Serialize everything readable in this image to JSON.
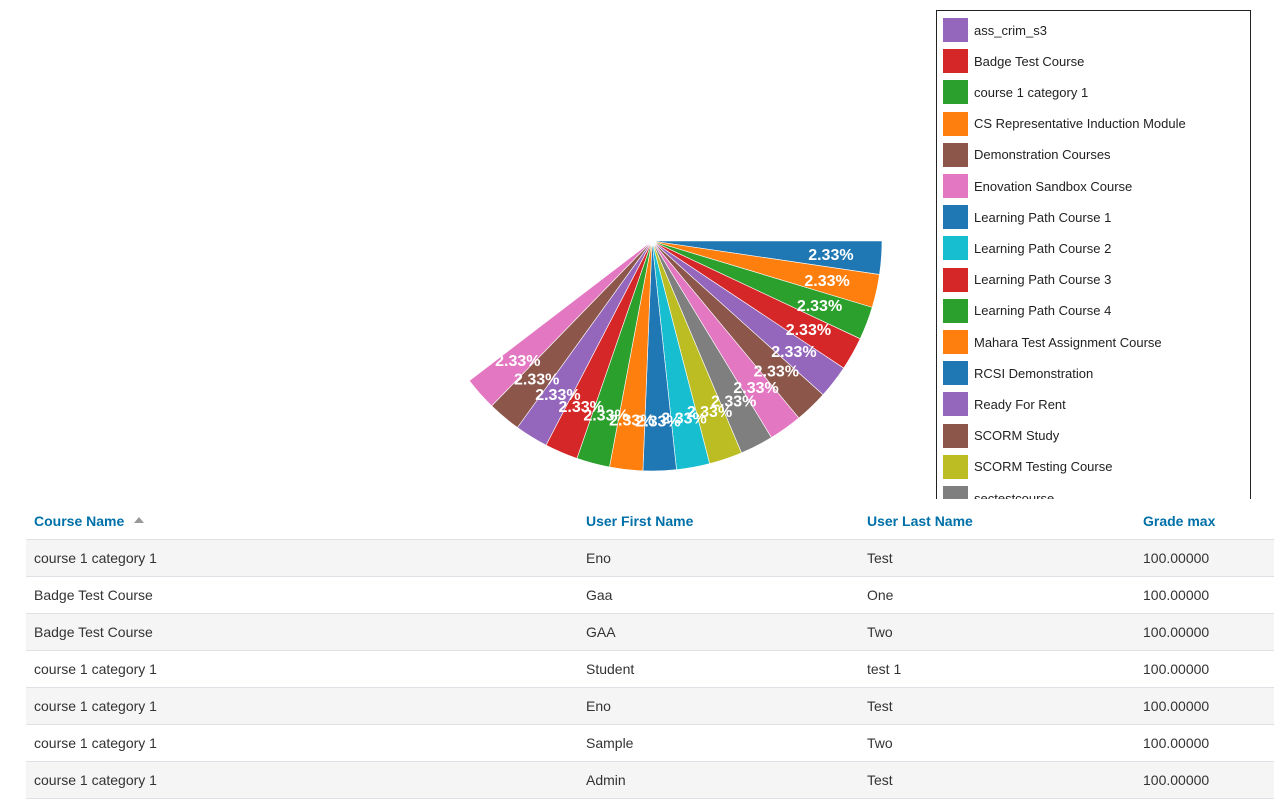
{
  "chart_data": {
    "type": "pie",
    "title": "",
    "slice_percent": 2.33,
    "slice_label": "2.33%",
    "visible_slices": [
      {
        "label": "Learning Path Course 1",
        "value": 2.33,
        "color": "#1f77b4"
      },
      {
        "label": "Mahara Test Assignment Course",
        "value": 2.33,
        "color": "#ff7f0e"
      },
      {
        "label": "Learning Path Course 4",
        "value": 2.33,
        "color": "#2ca02c"
      },
      {
        "label": "Learning Path Course 3",
        "value": 2.33,
        "color": "#d62728"
      },
      {
        "label": "ass_crim_s3",
        "value": 2.33,
        "color": "#9467bd"
      },
      {
        "label": "Demonstration Courses",
        "value": 2.33,
        "color": "#8c564b"
      },
      {
        "label": "Enovation Sandbox Course",
        "value": 2.33,
        "color": "#e377c2"
      },
      {
        "label": "",
        "value": 2.33,
        "color": "#7f7f7f"
      },
      {
        "label": "SCORM Testing Course",
        "value": 2.33,
        "color": "#bcbd22"
      },
      {
        "label": "Learning Path Course 2",
        "value": 2.33,
        "color": "#17becf"
      },
      {
        "label": "RCSI Demonstration",
        "value": 2.33,
        "color": "#1f77b4"
      },
      {
        "label": "CS Representative Induction Module",
        "value": 2.33,
        "color": "#ff7f0e"
      },
      {
        "label": "course 1 category 1",
        "value": 2.33,
        "color": "#2ca02c"
      },
      {
        "label": "Badge Test Course",
        "value": 2.33,
        "color": "#d62728"
      },
      {
        "label": "Ready For Rent",
        "value": 2.33,
        "color": "#9467bd"
      },
      {
        "label": "SCORM Study",
        "value": 2.33,
        "color": "#8c564b"
      },
      {
        "label": "",
        "value": 2.33,
        "color": "#e377c2"
      }
    ],
    "legend": [
      {
        "label": "ass_crim_s3",
        "color": "#9467bd"
      },
      {
        "label": "Badge Test Course",
        "color": "#d62728"
      },
      {
        "label": "course 1 category 1",
        "color": "#2ca02c"
      },
      {
        "label": "CS Representative Induction Module",
        "color": "#ff7f0e"
      },
      {
        "label": "Demonstration Courses",
        "color": "#8c564b"
      },
      {
        "label": "Enovation Sandbox Course",
        "color": "#e377c2"
      },
      {
        "label": "Learning Path Course 1",
        "color": "#1f77b4"
      },
      {
        "label": "Learning Path Course 2",
        "color": "#17becf"
      },
      {
        "label": "Learning Path Course 3",
        "color": "#d62728"
      },
      {
        "label": "Learning Path Course 4",
        "color": "#2ca02c"
      },
      {
        "label": "Mahara Test Assignment Course",
        "color": "#ff7f0e"
      },
      {
        "label": "RCSI Demonstration",
        "color": "#1f77b4"
      },
      {
        "label": "Ready For Rent",
        "color": "#9467bd"
      },
      {
        "label": "SCORM Study",
        "color": "#8c564b"
      },
      {
        "label": "SCORM Testing Course",
        "color": "#bcbd22"
      },
      {
        "label": "sectestcourse",
        "color": "#7f7f7f"
      }
    ],
    "legend_placement": "right"
  },
  "table": {
    "headers": {
      "course_name": "Course Name",
      "first_name": "User First Name",
      "last_name": "User Last Name",
      "grade_max": "Grade max"
    },
    "sorted_by": "Course Name",
    "rows": [
      {
        "course": "course 1 category 1",
        "first": "Eno",
        "last": "Test",
        "grade": "100.00000"
      },
      {
        "course": "Badge Test Course",
        "first": "Gaa",
        "last": "One",
        "grade": "100.00000"
      },
      {
        "course": "Badge Test Course",
        "first": "GAA",
        "last": "Two",
        "grade": "100.00000"
      },
      {
        "course": "course 1 category 1",
        "first": "Student",
        "last": "test 1",
        "grade": "100.00000"
      },
      {
        "course": "course 1 category 1",
        "first": "Eno",
        "last": "Test",
        "grade": "100.00000"
      },
      {
        "course": "course 1 category 1",
        "first": "Sample",
        "last": "Two",
        "grade": "100.00000"
      },
      {
        "course": "course 1 category 1",
        "first": "Admin",
        "last": "Test",
        "grade": "100.00000"
      }
    ]
  }
}
